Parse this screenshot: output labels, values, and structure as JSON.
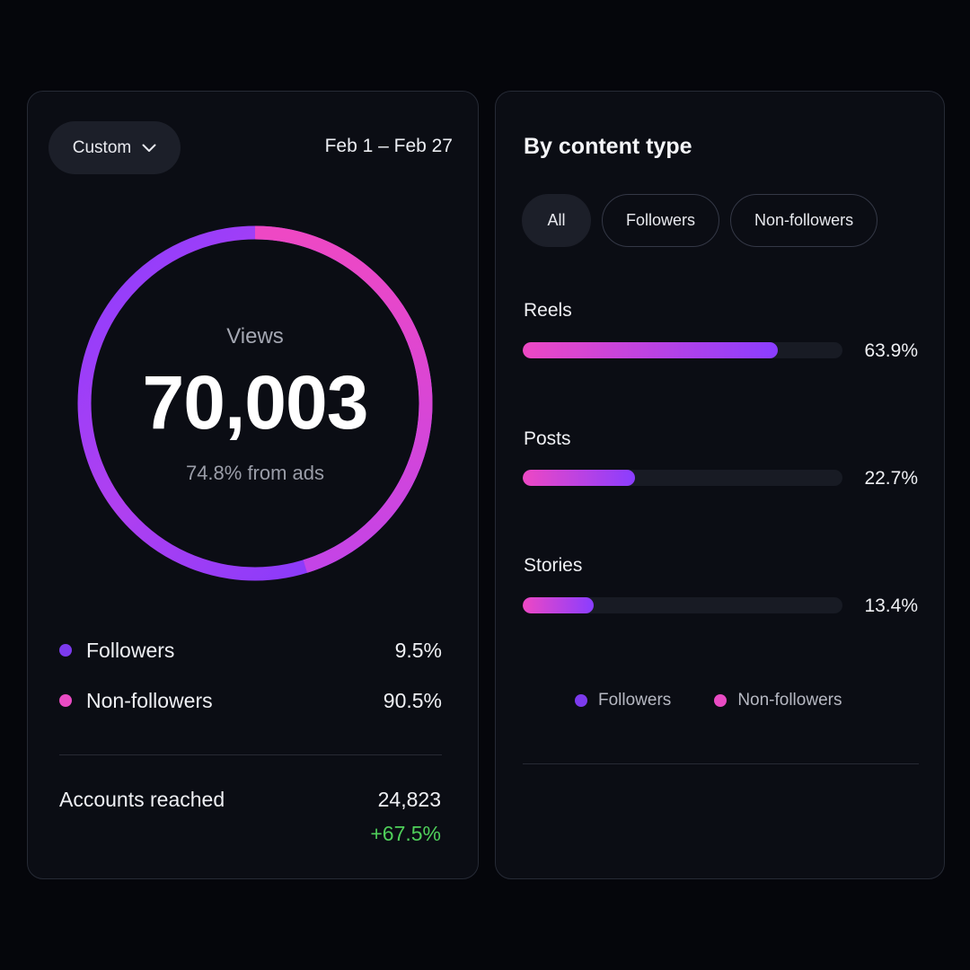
{
  "colors": {
    "followers": "#7c3aed",
    "non_followers": "#e94bc3",
    "positive": "#4fcf5a",
    "ring_start": "#8b3dff",
    "ring_end": "#ee48c4"
  },
  "overview": {
    "range_select": "Custom",
    "range_icon": "chevron-down-icon",
    "date_range": "Feb 1 – Feb 27",
    "views_label": "Views",
    "views_value": "70,003",
    "views_sub": "74.8% from ads",
    "ring": {
      "followers_fraction": 0.095,
      "non_followers_fraction": 0.905
    },
    "legend": [
      {
        "label": "Followers",
        "value": "9.5%"
      },
      {
        "label": "Non-followers",
        "value": "90.5%"
      }
    ],
    "accounts_reached": {
      "label": "Accounts reached",
      "value": "24,823",
      "change": "+67.5%"
    }
  },
  "content_type": {
    "title": "By content type",
    "filters": [
      {
        "label": "All",
        "active": true
      },
      {
        "label": "Followers",
        "active": false
      },
      {
        "label": "Non-followers",
        "active": false
      }
    ],
    "rows": [
      {
        "label": "Reels",
        "value": "63.9%",
        "fraction": 0.799
      },
      {
        "label": "Posts",
        "value": "22.7%",
        "fraction": 0.351
      },
      {
        "label": "Stories",
        "value": "13.4%",
        "fraction": 0.222
      }
    ],
    "legend": [
      {
        "label": "Followers"
      },
      {
        "label": "Non-followers"
      }
    ]
  }
}
